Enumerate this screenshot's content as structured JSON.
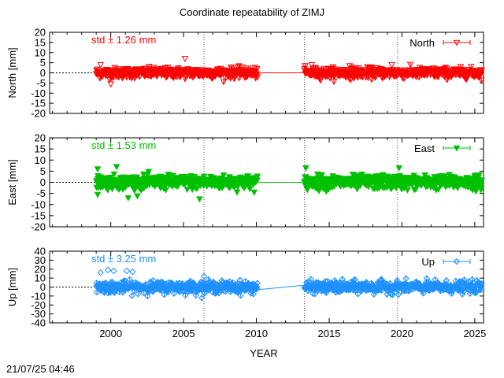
{
  "title": "Coordinate repeatability of ZIMJ",
  "timestamp": "21/07/25 04:46",
  "chart_data": {
    "type": "scatter",
    "xlabel": "YEAR",
    "xlim": [
      1995.8,
      2025.6
    ],
    "x_ticks": [
      2000,
      2005,
      2010,
      2015,
      2020,
      2025
    ],
    "vertical_dashed_lines": [
      2006.4,
      2013.3,
      2019.7
    ],
    "data_gap": [
      2010.1,
      2013.3
    ],
    "panels": [
      {
        "ylabel": "North [mm]",
        "ylim": [
          -20,
          20
        ],
        "y_ticks": [
          20,
          15,
          10,
          5,
          0,
          -5,
          -10,
          -15,
          -20
        ],
        "series": [
          {
            "name": "North",
            "color": "#ff0000",
            "marker": "triangle-down-open",
            "x_range": [
              1999.0,
              2025.5
            ],
            "mean": 0,
            "std": 1.26,
            "extremes": [
              [
                2005.1,
                7
              ],
              [
                1999.3,
                4
              ],
              [
                2000.0,
                -5.5
              ],
              [
                2013.8,
                4
              ],
              [
                2019.3,
                4
              ],
              [
                2016.4,
                3.5
              ]
            ]
          }
        ],
        "annotation": "std ± 1.26 mm",
        "legend": "top-right"
      },
      {
        "ylabel": "East [mm]",
        "ylim": [
          -20,
          20
        ],
        "y_ticks": [
          20,
          15,
          10,
          5,
          0,
          -5,
          -10,
          -15,
          -20
        ],
        "series": [
          {
            "name": "East",
            "color": "#00c000",
            "marker": "triangle-down-filled",
            "x_range": [
              1999.0,
              2025.5
            ],
            "mean": 0,
            "std": 1.53,
            "extremes": [
              [
                1999.1,
                6
              ],
              [
                1999.1,
                -5.5
              ],
              [
                2000.4,
                7
              ],
              [
                2001.2,
                -7
              ],
              [
                2006.1,
                -7.5
              ],
              [
                2013.4,
                6.5
              ],
              [
                2019.8,
                6.5
              ]
            ]
          }
        ],
        "annotation": "std ± 1.53 mm",
        "legend": "top-right"
      },
      {
        "ylabel": "Up [mm]",
        "ylim": [
          -40,
          40
        ],
        "y_ticks": [
          40,
          30,
          20,
          10,
          0,
          -10,
          -20,
          -30,
          -40
        ],
        "series": [
          {
            "name": "Up",
            "color": "#1e90ff",
            "marker": "diamond-open",
            "x_range": [
              1999.0,
              2025.5
            ],
            "mean": 0,
            "std": 3.25,
            "extremes": [
              [
                1999.3,
                16
              ],
              [
                1999.8,
                19
              ],
              [
                2000.2,
                18
              ],
              [
                2001.1,
                18
              ],
              [
                2001.5,
                17
              ],
              [
                2006.4,
                12
              ]
            ]
          }
        ],
        "annotation": "std ± 3.25 mm",
        "legend": "top-right"
      }
    ]
  }
}
